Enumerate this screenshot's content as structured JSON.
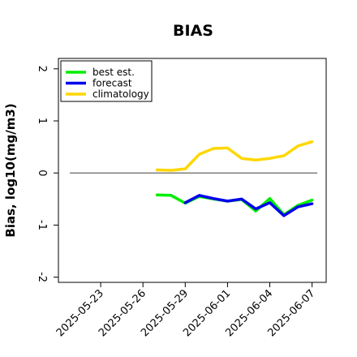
{
  "chart_data": {
    "type": "line",
    "title": "BIAS",
    "ylabel": "Bias, log10(mg/m3)",
    "xlabel": "",
    "xlim": [
      "2025-05-20",
      "2025-06-08"
    ],
    "ylim": [
      -2.1,
      2.2
    ],
    "x_ticks": [
      "2025-05-23",
      "2025-05-26",
      "2025-05-29",
      "2025-06-01",
      "2025-06-04",
      "2025-06-07"
    ],
    "x_tick_colors": [
      "#000000",
      "#000000",
      "#228B22",
      "#000000",
      "#000000",
      "#000000"
    ],
    "y_ticks": [
      -2,
      -1,
      0,
      1,
      2
    ],
    "y_tick_labels": [
      "-2",
      "-1",
      "0",
      "1",
      "2"
    ],
    "zero_line": 0,
    "grid": false,
    "legend_position": "top-left",
    "series": [
      {
        "name": "best est.",
        "color": "#00ee00",
        "x": [
          "2025-05-27",
          "2025-05-28",
          "2025-05-29",
          "2025-05-30",
          "2025-05-31",
          "2025-06-01",
          "2025-06-02",
          "2025-06-03",
          "2025-06-04",
          "2025-06-05",
          "2025-06-06",
          "2025-06-07"
        ],
        "y": [
          -0.42,
          -0.43,
          -0.58,
          -0.45,
          -0.5,
          -0.54,
          -0.51,
          -0.73,
          -0.49,
          -0.8,
          -0.62,
          -0.52
        ]
      },
      {
        "name": "forecast",
        "color": "#0000ee",
        "x": [
          "2025-05-29",
          "2025-05-30",
          "2025-05-31",
          "2025-06-01",
          "2025-06-02",
          "2025-06-03",
          "2025-06-04",
          "2025-06-05",
          "2025-06-06",
          "2025-06-07"
        ],
        "y": [
          -0.57,
          -0.43,
          -0.49,
          -0.54,
          -0.5,
          -0.69,
          -0.57,
          -0.82,
          -0.65,
          -0.59
        ]
      },
      {
        "name": "climatology",
        "color": "#ffd700",
        "x": [
          "2025-05-27",
          "2025-05-28",
          "2025-05-29",
          "2025-05-30",
          "2025-05-31",
          "2025-06-01",
          "2025-06-02",
          "2025-06-03",
          "2025-06-04",
          "2025-06-05",
          "2025-06-06",
          "2025-06-07"
        ],
        "y": [
          0.06,
          0.05,
          0.08,
          0.36,
          0.47,
          0.48,
          0.28,
          0.25,
          0.28,
          0.33,
          0.52,
          0.6
        ]
      }
    ]
  }
}
